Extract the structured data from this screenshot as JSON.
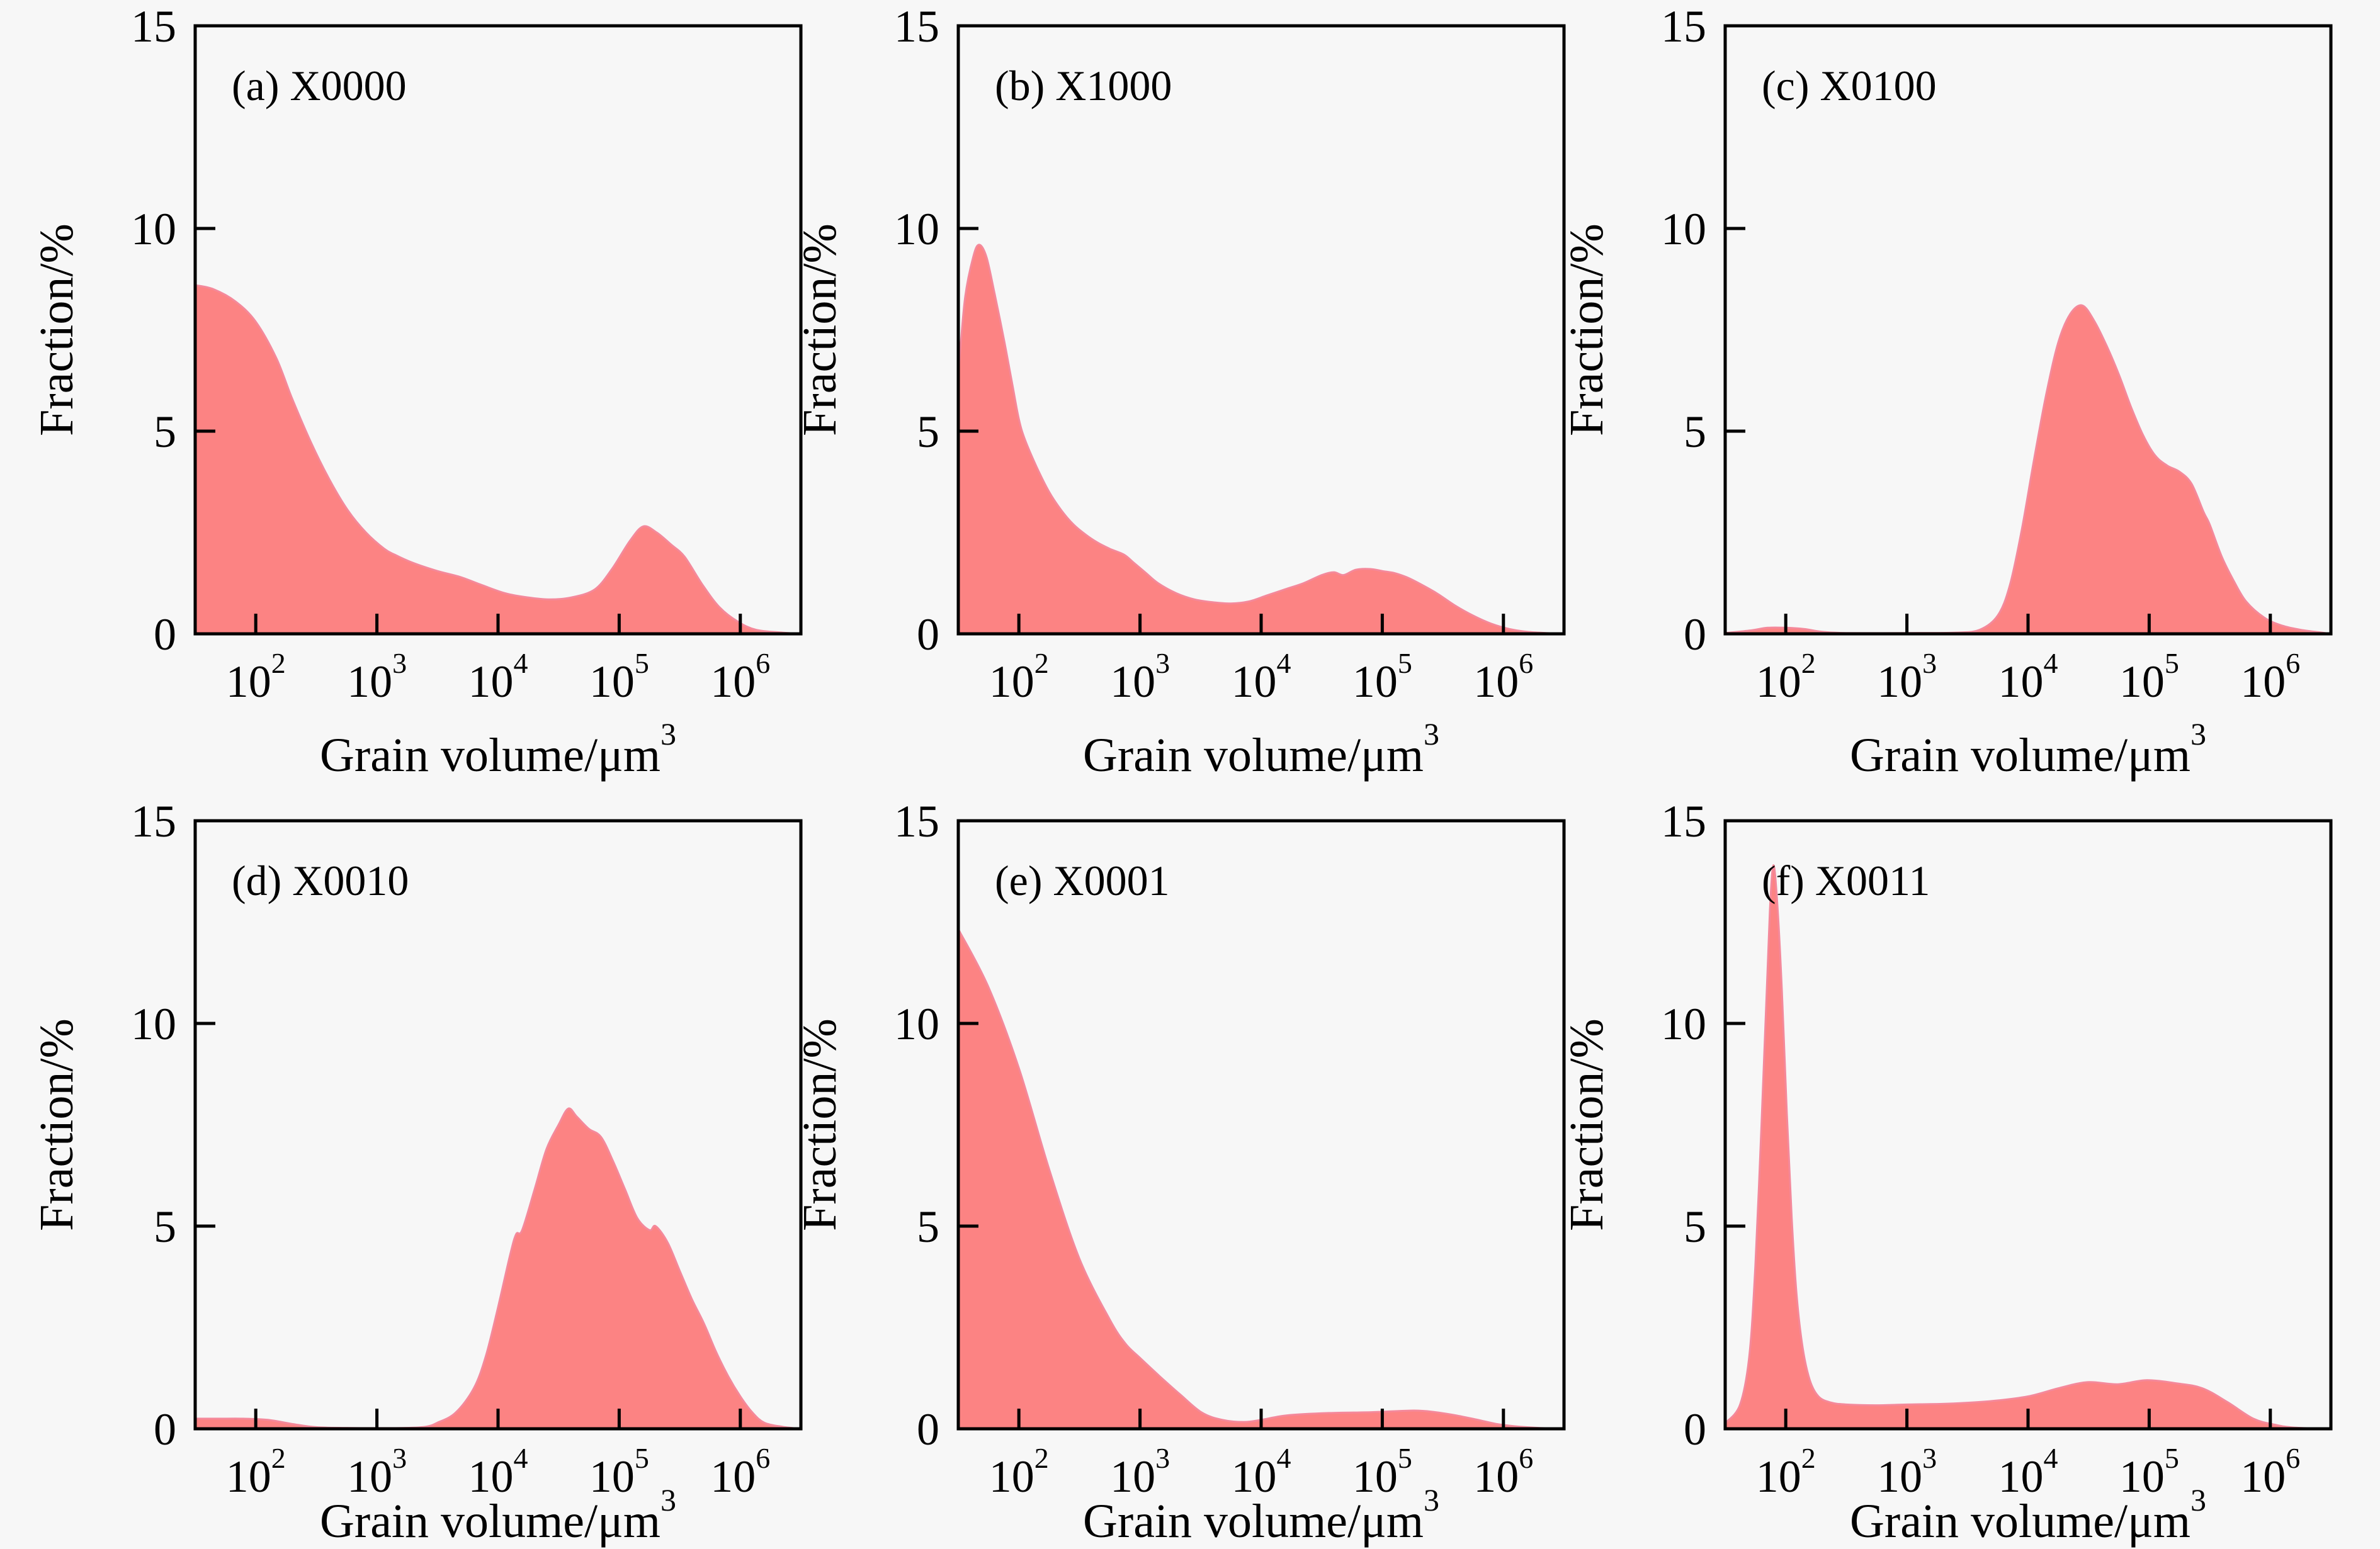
{
  "figure": {
    "background": "#f7f7f7",
    "fill_color": "#fc8383",
    "edge_color": "#f4899b",
    "axis_color": "#000000",
    "xtick_base": "10"
  },
  "chart_data": [
    {
      "id": "a",
      "type": "area",
      "label": "(a) X0000",
      "xscale": "log",
      "xlabel": "Grain volume/μm³",
      "xlabel_main": "Grain volume/μm",
      "xlabel_sup": "3",
      "ylabel": "Fraction/%",
      "xlim_log10": [
        1.5,
        6.5
      ],
      "ylim": [
        0,
        15
      ],
      "xtick_exponents": [
        2,
        3,
        4,
        5,
        6
      ],
      "yticks": [
        0,
        5,
        10,
        15
      ],
      "grid": false,
      "legend": "none",
      "points": [
        [
          32,
          8.6
        ],
        [
          45,
          8.5
        ],
        [
          68,
          8.2
        ],
        [
          100,
          7.7
        ],
        [
          148,
          6.8
        ],
        [
          200,
          5.8
        ],
        [
          288,
          4.7
        ],
        [
          407,
          3.8
        ],
        [
          575,
          3.05
        ],
        [
          813,
          2.5
        ],
        [
          1150,
          2.1
        ],
        [
          1410,
          1.95
        ],
        [
          1990,
          1.75
        ],
        [
          3160,
          1.55
        ],
        [
          4900,
          1.4
        ],
        [
          7400,
          1.2
        ],
        [
          11500,
          1.0
        ],
        [
          17400,
          0.9
        ],
        [
          26900,
          0.85
        ],
        [
          40700,
          0.9
        ],
        [
          63100,
          1.1
        ],
        [
          87100,
          1.6
        ],
        [
          123000,
          2.3
        ],
        [
          158000,
          2.65
        ],
        [
          204000,
          2.5
        ],
        [
          269000,
          2.2
        ],
        [
          347000,
          1.9
        ],
        [
          490000,
          1.2
        ],
        [
          676000,
          0.65
        ],
        [
          955000,
          0.3
        ],
        [
          1350000,
          0.1
        ],
        [
          2240000,
          0.03
        ],
        [
          3160000,
          0
        ]
      ]
    },
    {
      "id": "b",
      "type": "area",
      "label": "(b) X1000",
      "xscale": "log",
      "xlabel": "Grain volume/μm³",
      "xlabel_main": "Grain volume/μm",
      "xlabel_sup": "3",
      "ylabel": "Fraction/%",
      "xlim_log10": [
        1.5,
        6.5
      ],
      "ylim": [
        0,
        15
      ],
      "xtick_exponents": [
        2,
        3,
        4,
        5,
        6
      ],
      "yticks": [
        0,
        5,
        10,
        15
      ],
      "grid": false,
      "legend": "none",
      "points": [
        [
          32,
          6.6
        ],
        [
          36,
          8.3
        ],
        [
          42,
          9.3
        ],
        [
          47,
          9.6
        ],
        [
          54,
          9.3
        ],
        [
          63,
          8.4
        ],
        [
          76,
          7.2
        ],
        [
          89,
          6.1
        ],
        [
          100,
          5.3
        ],
        [
          112,
          4.8
        ],
        [
          141,
          4.1
        ],
        [
          178,
          3.5
        ],
        [
          224,
          3.05
        ],
        [
          282,
          2.7
        ],
        [
          355,
          2.45
        ],
        [
          447,
          2.25
        ],
        [
          562,
          2.1
        ],
        [
          741,
          1.95
        ],
        [
          891,
          1.75
        ],
        [
          1120,
          1.5
        ],
        [
          1410,
          1.25
        ],
        [
          2000,
          1.0
        ],
        [
          2820,
          0.85
        ],
        [
          3980,
          0.78
        ],
        [
          5620,
          0.75
        ],
        [
          7940,
          0.8
        ],
        [
          11200,
          0.95
        ],
        [
          15800,
          1.1
        ],
        [
          22400,
          1.25
        ],
        [
          31600,
          1.45
        ],
        [
          39800,
          1.52
        ],
        [
          47900,
          1.45
        ],
        [
          60300,
          1.58
        ],
        [
          79400,
          1.6
        ],
        [
          100000,
          1.55
        ],
        [
          126000,
          1.5
        ],
        [
          158000,
          1.4
        ],
        [
          200000,
          1.25
        ],
        [
          282000,
          1.0
        ],
        [
          398000,
          0.7
        ],
        [
          562000,
          0.45
        ],
        [
          794000,
          0.25
        ],
        [
          1120000,
          0.12
        ],
        [
          1580000,
          0.05
        ],
        [
          2240000,
          0.02
        ],
        [
          3160000,
          0
        ]
      ]
    },
    {
      "id": "c",
      "type": "area",
      "label": "(c) X0100",
      "xscale": "log",
      "xlabel": "Grain volume/μm³",
      "xlabel_main": "Grain volume/μm",
      "xlabel_sup": "3",
      "ylabel": "Fraction/%",
      "xlim_log10": [
        1.5,
        6.5
      ],
      "ylim": [
        0,
        15
      ],
      "xtick_exponents": [
        2,
        3,
        4,
        5,
        6
      ],
      "yticks": [
        0,
        5,
        10,
        15
      ],
      "grid": false,
      "legend": "none",
      "points": [
        [
          32,
          0.02
        ],
        [
          50,
          0.08
        ],
        [
          71,
          0.15
        ],
        [
          100,
          0.15
        ],
        [
          141,
          0.12
        ],
        [
          200,
          0.05
        ],
        [
          316,
          0.02
        ],
        [
          1000,
          0.02
        ],
        [
          2510,
          0.03
        ],
        [
          3980,
          0.1
        ],
        [
          5620,
          0.45
        ],
        [
          7080,
          1.2
        ],
        [
          8910,
          2.6
        ],
        [
          11200,
          4.3
        ],
        [
          14100,
          5.9
        ],
        [
          17800,
          7.2
        ],
        [
          22400,
          7.9
        ],
        [
          28200,
          8.1
        ],
        [
          35500,
          7.7
        ],
        [
          44700,
          7.1
        ],
        [
          56200,
          6.4
        ],
        [
          70800,
          5.6
        ],
        [
          89100,
          4.9
        ],
        [
          112000,
          4.4
        ],
        [
          141000,
          4.15
        ],
        [
          178000,
          4.0
        ],
        [
          224000,
          3.7
        ],
        [
          282000,
          3.0
        ],
        [
          316000,
          2.7
        ],
        [
          398000,
          1.9
        ],
        [
          501000,
          1.3
        ],
        [
          631000,
          0.8
        ],
        [
          891000,
          0.4
        ],
        [
          1260000,
          0.2
        ],
        [
          1780000,
          0.1
        ],
        [
          2510000,
          0.04
        ],
        [
          3160000,
          0
        ]
      ]
    },
    {
      "id": "d",
      "type": "area",
      "label": "(d) X0010",
      "xscale": "log",
      "xlabel": "Grain volume/μm³",
      "xlabel_main": "Grain volume/μm",
      "xlabel_sup": "3",
      "ylabel": "Fraction/%",
      "xlim_log10": [
        1.5,
        6.5
      ],
      "ylim": [
        0,
        15
      ],
      "xtick_exponents": [
        2,
        3,
        4,
        5,
        6
      ],
      "yticks": [
        0,
        5,
        10,
        15
      ],
      "grid": false,
      "legend": "none",
      "points": [
        [
          32,
          0.25
        ],
        [
          50,
          0.25
        ],
        [
          79,
          0.25
        ],
        [
          126,
          0.22
        ],
        [
          200,
          0.12
        ],
        [
          316,
          0.04
        ],
        [
          631,
          0.02
        ],
        [
          1580,
          0.02
        ],
        [
          2510,
          0.05
        ],
        [
          3160,
          0.15
        ],
        [
          4470,
          0.4
        ],
        [
          6310,
          1.0
        ],
        [
          7940,
          1.8
        ],
        [
          10000,
          3.0
        ],
        [
          12600,
          4.3
        ],
        [
          14100,
          4.8
        ],
        [
          15800,
          4.9
        ],
        [
          20000,
          5.9
        ],
        [
          25100,
          6.9
        ],
        [
          31600,
          7.5
        ],
        [
          38000,
          7.9
        ],
        [
          44700,
          7.7
        ],
        [
          56200,
          7.4
        ],
        [
          70800,
          7.2
        ],
        [
          89100,
          6.6
        ],
        [
          112000,
          5.9
        ],
        [
          141000,
          5.2
        ],
        [
          178000,
          4.9
        ],
        [
          200000,
          5.0
        ],
        [
          251000,
          4.6
        ],
        [
          316000,
          3.9
        ],
        [
          398000,
          3.2
        ],
        [
          501000,
          2.6
        ],
        [
          631000,
          1.9
        ],
        [
          794000,
          1.3
        ],
        [
          1000000,
          0.8
        ],
        [
          1260000,
          0.4
        ],
        [
          1580000,
          0.15
        ],
        [
          2240000,
          0.05
        ],
        [
          3160000,
          0
        ]
      ]
    },
    {
      "id": "e",
      "type": "area",
      "label": "(e) X0001",
      "xscale": "log",
      "xlabel": "Grain volume/μm³",
      "xlabel_main": "Grain volume/μm",
      "xlabel_sup": "3",
      "ylabel": "Fraction/%",
      "xlim_log10": [
        1.5,
        6.5
      ],
      "ylim": [
        0,
        15
      ],
      "xtick_exponents": [
        2,
        3,
        4,
        5,
        6
      ],
      "yticks": [
        0,
        5,
        10,
        15
      ],
      "grid": false,
      "legend": "none",
      "points": [
        [
          32,
          12.3
        ],
        [
          56,
          10.9
        ],
        [
          100,
          8.9
        ],
        [
          178,
          6.4
        ],
        [
          316,
          4.2
        ],
        [
          562,
          2.7
        ],
        [
          759,
          2.1
        ],
        [
          1000,
          1.75
        ],
        [
          1450,
          1.3
        ],
        [
          2140,
          0.85
        ],
        [
          3240,
          0.4
        ],
        [
          4790,
          0.22
        ],
        [
          7240,
          0.17
        ],
        [
          10000,
          0.22
        ],
        [
          16200,
          0.33
        ],
        [
          36300,
          0.39
        ],
        [
          81300,
          0.41
        ],
        [
          182000,
          0.45
        ],
        [
          275000,
          0.41
        ],
        [
          407000,
          0.33
        ],
        [
          617000,
          0.22
        ],
        [
          912000,
          0.11
        ],
        [
          1380000,
          0.05
        ],
        [
          2000000,
          0.02
        ],
        [
          3160000,
          0
        ]
      ]
    },
    {
      "id": "f",
      "type": "area",
      "label": "(f) X0011",
      "xscale": "log",
      "xlabel": "Grain volume/μm³",
      "xlabel_main": "Grain volume/μm",
      "xlabel_sup": "3",
      "ylabel": "Fraction/%",
      "xlim_log10": [
        1.5,
        6.5
      ],
      "ylim": [
        0,
        15
      ],
      "xtick_exponents": [
        2,
        3,
        4,
        5,
        6
      ],
      "yticks": [
        0,
        5,
        10,
        15
      ],
      "grid": false,
      "legend": "none",
      "points": [
        [
          32,
          0.15
        ],
        [
          42,
          0.6
        ],
        [
          50,
          1.8
        ],
        [
          56,
          4.0
        ],
        [
          63,
          7.5
        ],
        [
          69,
          10.5
        ],
        [
          74,
          12.8
        ],
        [
          79,
          13.9
        ],
        [
          85,
          13.0
        ],
        [
          93,
          10.8
        ],
        [
          102,
          7.8
        ],
        [
          112,
          5.2
        ],
        [
          123,
          3.3
        ],
        [
          138,
          2.0
        ],
        [
          158,
          1.2
        ],
        [
          186,
          0.8
        ],
        [
          234,
          0.65
        ],
        [
          316,
          0.6
        ],
        [
          550,
          0.58
        ],
        [
          1000,
          0.6
        ],
        [
          2140,
          0.62
        ],
        [
          4790,
          0.68
        ],
        [
          10000,
          0.8
        ],
        [
          17800,
          1.0
        ],
        [
          30900,
          1.15
        ],
        [
          55000,
          1.1
        ],
        [
          95500,
          1.2
        ],
        [
          170000,
          1.12
        ],
        [
          275000,
          1.0
        ],
        [
          447000,
          0.65
        ],
        [
          724000,
          0.25
        ],
        [
          1100000,
          0.1
        ],
        [
          1580000,
          0.03
        ],
        [
          3160000,
          0
        ]
      ]
    }
  ]
}
